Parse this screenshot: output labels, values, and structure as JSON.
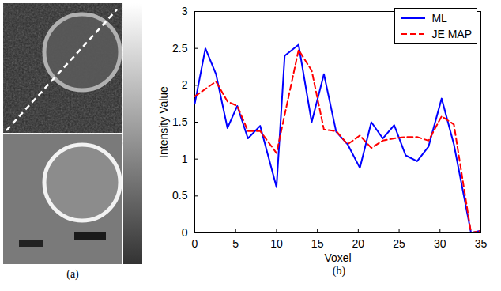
{
  "image_panel": {
    "caption": "(a)"
  },
  "chart_data": {
    "type": "line",
    "caption": "(b)",
    "x_label": "Voxel",
    "y_label": "Intensity Value",
    "x": [
      0,
      1.3,
      2.6,
      4,
      5.2,
      6.5,
      8,
      10,
      11,
      12.7,
      14.3,
      15.8,
      17.3,
      18.7,
      20.2,
      21.6,
      23,
      24.4,
      25.8,
      27.2,
      28.6,
      30.2,
      31.7,
      33.8,
      35
    ],
    "series": [
      {
        "name": "ML",
        "color": "#0000ff",
        "line_style": "solid",
        "values": [
          1.75,
          2.5,
          2.15,
          1.42,
          1.72,
          1.28,
          1.45,
          0.62,
          2.4,
          2.55,
          1.5,
          2.15,
          1.37,
          1.2,
          0.88,
          1.5,
          1.28,
          1.46,
          1.05,
          0.97,
          1.17,
          1.82,
          1.2,
          0,
          0.03
        ]
      },
      {
        "name": "JE MAP",
        "color": "#ff0000",
        "line_style": "dashed",
        "values": [
          1.85,
          1.95,
          2.05,
          1.78,
          1.72,
          1.38,
          1.38,
          1.08,
          1.6,
          2.48,
          2.2,
          1.4,
          1.38,
          1.2,
          1.32,
          1.15,
          1.25,
          1.28,
          1.3,
          1.3,
          1.25,
          1.58,
          1.47,
          0,
          0.03
        ]
      }
    ],
    "xlim": [
      0,
      35
    ],
    "xticks": [
      0,
      5,
      10,
      15,
      20,
      25,
      30,
      35
    ],
    "ylim": [
      0,
      3
    ],
    "yticks": [
      0,
      0.5,
      1,
      1.5,
      2,
      2.5,
      3
    ],
    "grid": false,
    "legend": "top-right"
  }
}
